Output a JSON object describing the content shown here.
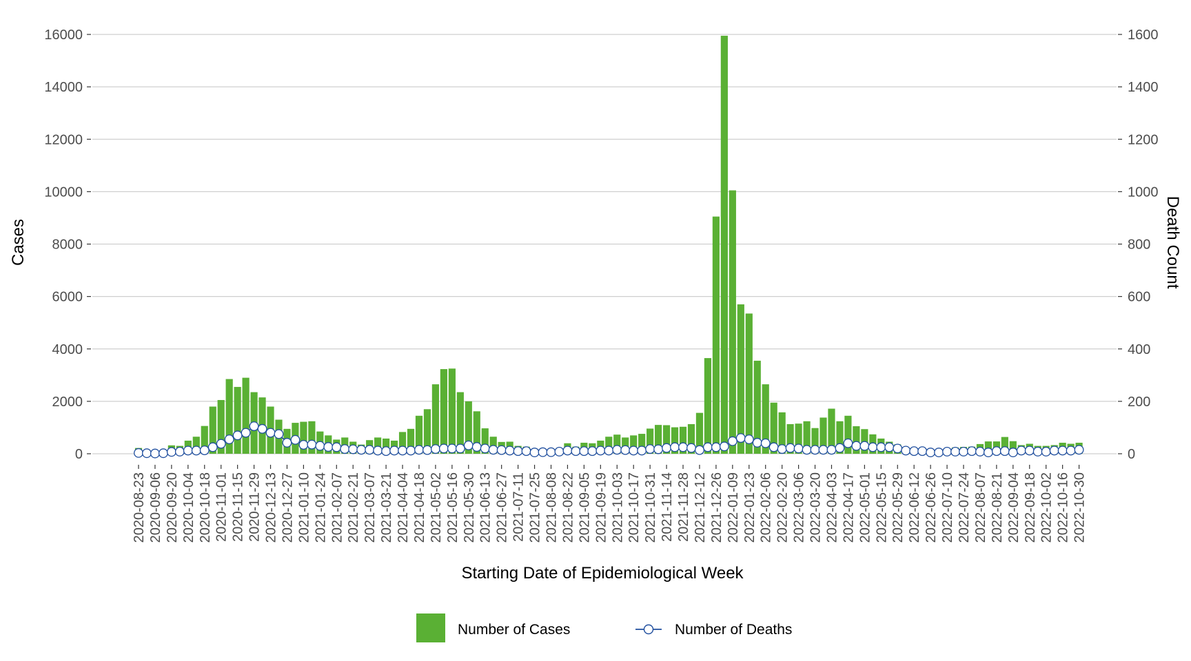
{
  "chart_data": {
    "type": "bar",
    "xlabel": "Starting Date of Epidemiological Week",
    "ylabel": "Cases",
    "y2label": "Death Count",
    "ylim": [
      0,
      16000
    ],
    "y2lim": [
      0,
      1600
    ],
    "yticks": [
      "0",
      "2000",
      "4000",
      "6000",
      "8000",
      "10000",
      "12000",
      "14000",
      "16000"
    ],
    "y2ticks": [
      "0",
      "200",
      "400",
      "600",
      "800",
      "1000",
      "1200",
      "1400",
      "1600"
    ],
    "grid": true,
    "legend_position": "bottom",
    "x": [
      "2020-08-23",
      "2020-08-30",
      "2020-09-06",
      "2020-09-13",
      "2020-09-20",
      "2020-09-27",
      "2020-10-04",
      "2020-10-11",
      "2020-10-18",
      "2020-10-25",
      "2020-11-01",
      "2020-11-08",
      "2020-11-15",
      "2020-11-22",
      "2020-11-29",
      "2020-12-06",
      "2020-12-13",
      "2020-12-20",
      "2020-12-27",
      "2021-01-03",
      "2021-01-10",
      "2021-01-17",
      "2021-01-24",
      "2021-01-31",
      "2021-02-07",
      "2021-02-14",
      "2021-02-21",
      "2021-02-28",
      "2021-03-07",
      "2021-03-14",
      "2021-03-21",
      "2021-03-28",
      "2021-04-04",
      "2021-04-11",
      "2021-04-18",
      "2021-04-25",
      "2021-05-02",
      "2021-05-09",
      "2021-05-16",
      "2021-05-23",
      "2021-05-30",
      "2021-06-06",
      "2021-06-13",
      "2021-06-20",
      "2021-06-27",
      "2021-07-04",
      "2021-07-11",
      "2021-07-18",
      "2021-07-25",
      "2021-08-01",
      "2021-08-08",
      "2021-08-15",
      "2021-08-22",
      "2021-08-29",
      "2021-09-05",
      "2021-09-12",
      "2021-09-19",
      "2021-09-26",
      "2021-10-03",
      "2021-10-10",
      "2021-10-17",
      "2021-10-24",
      "2021-10-31",
      "2021-11-07",
      "2021-11-14",
      "2021-11-21",
      "2021-11-28",
      "2021-12-05",
      "2021-12-12",
      "2021-12-19",
      "2021-12-26",
      "2022-01-02",
      "2022-01-09",
      "2022-01-16",
      "2022-01-23",
      "2022-01-30",
      "2022-02-06",
      "2022-02-13",
      "2022-02-20",
      "2022-02-27",
      "2022-03-06",
      "2022-03-13",
      "2022-03-20",
      "2022-03-27",
      "2022-04-03",
      "2022-04-10",
      "2022-04-17",
      "2022-04-24",
      "2022-05-01",
      "2022-05-08",
      "2022-05-15",
      "2022-05-22",
      "2022-05-29",
      "2022-06-05",
      "2022-06-12",
      "2022-06-19",
      "2022-06-26",
      "2022-07-03",
      "2022-07-10",
      "2022-07-17",
      "2022-07-24",
      "2022-07-31",
      "2022-08-07",
      "2022-08-14",
      "2022-08-21",
      "2022-08-28",
      "2022-09-04",
      "2022-09-11",
      "2022-09-18",
      "2022-09-25",
      "2022-10-02",
      "2022-10-09",
      "2022-10-16",
      "2022-10-23",
      "2022-10-30"
    ],
    "tick_labels_every": 2,
    "series": [
      {
        "name": "Number of Cases",
        "type": "bar",
        "axis": "left",
        "color": "#5ab034",
        "values": [
          220,
          150,
          130,
          140,
          320,
          300,
          500,
          650,
          1060,
          1800,
          2050,
          2850,
          2550,
          2900,
          2350,
          2150,
          1800,
          1300,
          950,
          1180,
          1220,
          1240,
          850,
          700,
          540,
          620,
          460,
          350,
          520,
          620,
          580,
          500,
          830,
          950,
          1450,
          1700,
          2650,
          3230,
          3250,
          2350,
          2000,
          1620,
          970,
          650,
          450,
          460,
          300,
          270,
          150,
          150,
          180,
          210,
          400,
          270,
          420,
          400,
          500,
          650,
          730,
          620,
          700,
          760,
          960,
          1100,
          1090,
          1010,
          1030,
          1130,
          1560,
          3650,
          9050,
          15950,
          10050,
          5700,
          5350,
          3550,
          2650,
          1950,
          1580,
          1130,
          1150,
          1240,
          980,
          1380,
          1720,
          1240,
          1450,
          1050,
          940,
          740,
          580,
          460,
          360,
          250,
          220,
          200,
          150,
          130,
          180,
          240,
          260,
          270,
          370,
          470,
          470,
          640,
          480,
          330,
          380,
          300,
          300,
          330,
          420,
          380,
          420
        ]
      },
      {
        "name": "Number of Deaths",
        "type": "line",
        "axis": "right",
        "color": "#1f4e9e",
        "values": [
          3,
          2,
          1,
          2,
          7,
          8,
          12,
          12,
          13,
          25,
          38,
          55,
          70,
          80,
          105,
          95,
          80,
          75,
          42,
          53,
          34,
          35,
          30,
          26,
          25,
          18,
          17,
          15,
          15,
          12,
          10,
          12,
          12,
          12,
          15,
          14,
          18,
          20,
          20,
          20,
          32,
          26,
          20,
          15,
          14,
          12,
          10,
          10,
          5,
          6,
          6,
          8,
          12,
          10,
          10,
          10,
          12,
          12,
          15,
          14,
          12,
          12,
          18,
          17,
          22,
          25,
          25,
          22,
          14,
          25,
          25,
          28,
          48,
          60,
          55,
          42,
          40,
          25,
          18,
          22,
          20,
          15,
          15,
          15,
          15,
          22,
          40,
          30,
          30,
          25,
          25,
          25,
          20,
          12,
          10,
          10,
          5,
          5,
          8,
          8,
          8,
          10,
          8,
          5,
          10,
          10,
          5,
          12,
          12,
          8,
          8,
          12,
          12,
          12,
          15
        ]
      }
    ]
  },
  "legend": {
    "cases_label": "Number of Cases",
    "deaths_label": "Number of Deaths"
  }
}
